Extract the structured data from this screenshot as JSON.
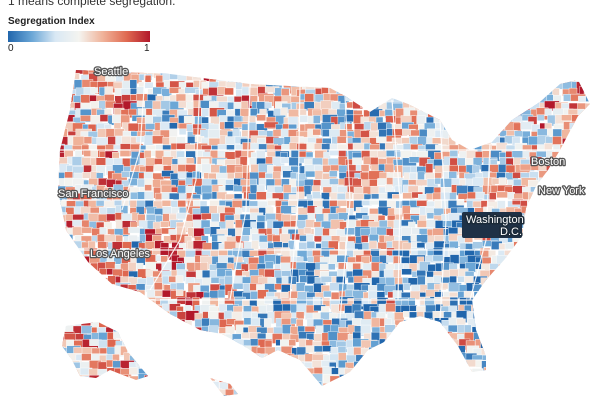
{
  "subtitle": "1 means complete segregation.",
  "legend": {
    "title": "Segregation Index",
    "min_label": "0",
    "max_label": "1",
    "color_stops": [
      "#2166ac",
      "#6aa6d6",
      "#d9e8f4",
      "#f4f4f0",
      "#f0b39a",
      "#e06b52",
      "#b2182b"
    ]
  },
  "cities": {
    "seattle": "Seattle",
    "san_francisco": "San Francisco",
    "los_angeles": "Los Angeles",
    "washington_dc": "Washington D.C.",
    "boston": "Boston",
    "new_york": "New York"
  }
}
